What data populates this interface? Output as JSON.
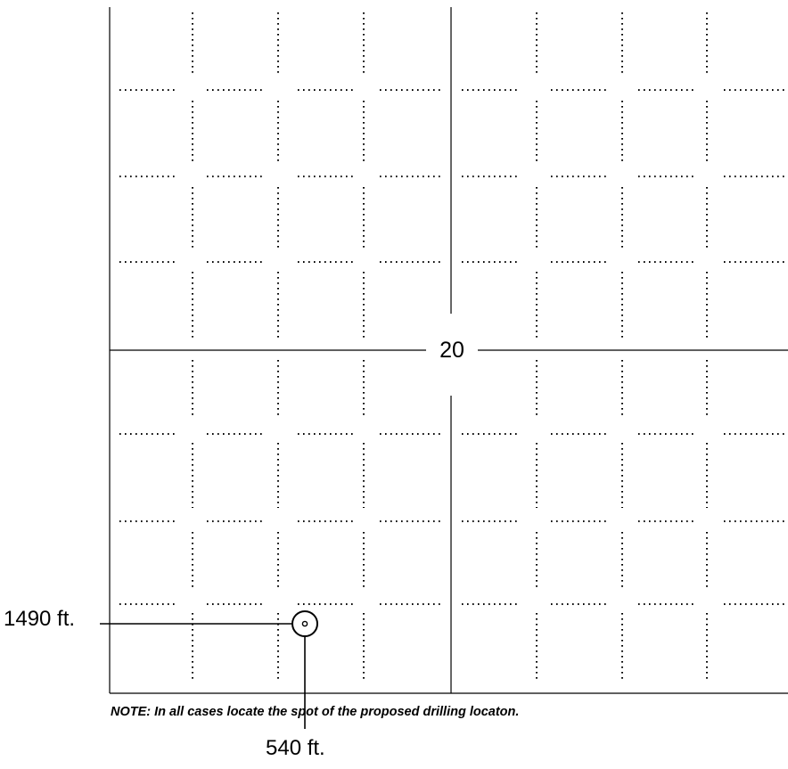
{
  "plat": {
    "section_number": "20",
    "offset_west_label": "1490 ft.",
    "offset_south_label": "540 ft.",
    "note": "NOTE: In all cases locate the spot of the proposed drilling locaton.",
    "well_symbol": "circle-with-dot-icon"
  }
}
